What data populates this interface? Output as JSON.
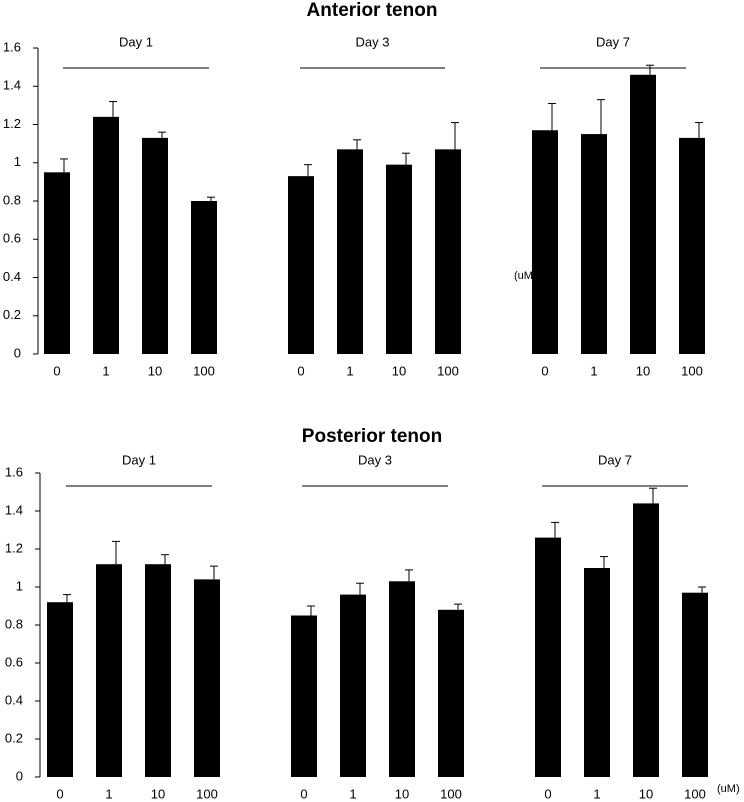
{
  "chart_data": [
    {
      "type": "bar",
      "title": "Anterior tenon",
      "unit_label": "(uM",
      "groups": [
        "Day 1",
        "Day 3",
        "Day 7"
      ],
      "categories": [
        "0",
        "1",
        "10",
        "100",
        "0",
        "1",
        "10",
        "100",
        "0",
        "1",
        "10",
        "100"
      ],
      "values": [
        0.95,
        1.24,
        1.13,
        0.8,
        0.93,
        1.07,
        0.99,
        1.07,
        1.17,
        1.15,
        1.46,
        1.13
      ],
      "errors": [
        0.07,
        0.08,
        0.03,
        0.02,
        0.06,
        0.05,
        0.06,
        0.14,
        0.14,
        0.18,
        0.05,
        0.08
      ],
      "color": "#000000",
      "ylim": [
        0,
        1.6
      ],
      "yticks": [
        0,
        0.2,
        0.4,
        0.6,
        0.8,
        1,
        1.2,
        1.4,
        1.6
      ]
    },
    {
      "type": "bar",
      "title": "Posterior tenon",
      "unit_label": "(uM)",
      "groups": [
        "Day 1",
        "Day 3",
        "Day 7"
      ],
      "categories": [
        "0",
        "1",
        "10",
        "100",
        "0",
        "1",
        "10",
        "100",
        "0",
        "1",
        "10",
        "100"
      ],
      "values": [
        0.92,
        1.12,
        1.12,
        1.04,
        0.85,
        0.96,
        1.03,
        0.88,
        1.26,
        1.1,
        1.44,
        0.97
      ],
      "errors": [
        0.04,
        0.12,
        0.05,
        0.07,
        0.05,
        0.06,
        0.06,
        0.03,
        0.08,
        0.06,
        0.08,
        0.03
      ],
      "color": "#000000",
      "ylim": [
        0,
        1.6
      ],
      "yticks": [
        0,
        0.2,
        0.4,
        0.6,
        0.8,
        1,
        1.2,
        1.4,
        1.6
      ]
    }
  ]
}
